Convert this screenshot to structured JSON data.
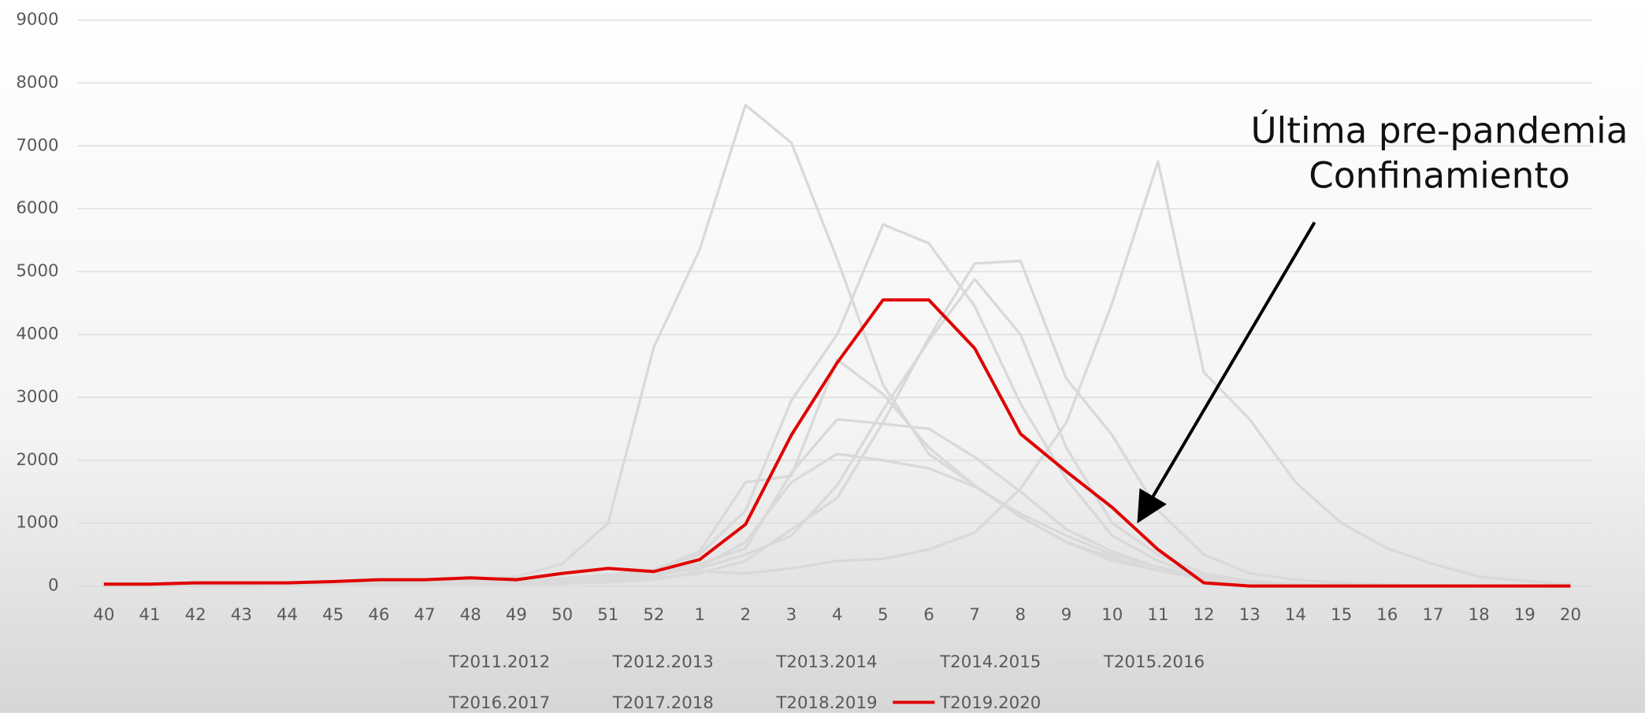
{
  "chart_data": {
    "type": "line",
    "categories": [
      "40",
      "41",
      "42",
      "43",
      "44",
      "45",
      "46",
      "47",
      "48",
      "49",
      "50",
      "51",
      "52",
      "1",
      "2",
      "3",
      "4",
      "5",
      "6",
      "7",
      "8",
      "9",
      "10",
      "11",
      "12",
      "13",
      "14",
      "15",
      "16",
      "17",
      "18",
      "19",
      "20"
    ],
    "series": [
      {
        "name": "T2011.2012",
        "color": "#d9d9d9",
        "values": [
          10,
          10,
          10,
          20,
          20,
          30,
          30,
          40,
          50,
          60,
          80,
          120,
          200,
          350,
          600,
          1800,
          2650,
          2580,
          2500,
          2050,
          1500,
          900,
          550,
          300,
          150,
          60,
          30,
          10,
          0,
          0,
          0,
          0,
          0
        ]
      },
      {
        "name": "T2012.2013",
        "color": "#d9d9d9",
        "values": [
          10,
          10,
          10,
          10,
          20,
          20,
          30,
          30,
          40,
          50,
          60,
          80,
          120,
          200,
          400,
          900,
          1400,
          2600,
          3950,
          5130,
          5170,
          3300,
          2400,
          1200,
          500,
          200,
          100,
          50,
          20,
          10,
          0,
          0,
          0
        ]
      },
      {
        "name": "T2013.2014",
        "color": "#d9d9d9",
        "values": [
          10,
          10,
          10,
          20,
          20,
          30,
          30,
          40,
          50,
          70,
          90,
          130,
          180,
          280,
          500,
          800,
          1600,
          2800,
          3900,
          4880,
          4000,
          2200,
          1000,
          500,
          200,
          80,
          30,
          10,
          0,
          0,
          0,
          0,
          0
        ]
      },
      {
        "name": "T2014.2015",
        "color": "#d9d9d9",
        "values": [
          10,
          10,
          20,
          20,
          30,
          30,
          40,
          50,
          70,
          90,
          120,
          180,
          260,
          500,
          1200,
          2950,
          4000,
          5750,
          5450,
          4450,
          2900,
          1700,
          800,
          400,
          150,
          60,
          20,
          10,
          0,
          0,
          0,
          0,
          0
        ]
      },
      {
        "name": "T2015.2016",
        "color": "#d9d9d9",
        "values": [
          0,
          0,
          0,
          0,
          10,
          10,
          10,
          20,
          20,
          30,
          40,
          60,
          100,
          230,
          200,
          280,
          400,
          430,
          580,
          850,
          1550,
          2600,
          4500,
          6750,
          3400,
          2650,
          1650,
          1000,
          600,
          350,
          150,
          80,
          30
        ]
      },
      {
        "name": "T2016.2017",
        "color": "#d9d9d9",
        "values": [
          20,
          20,
          30,
          30,
          40,
          50,
          60,
          80,
          100,
          150,
          350,
          1000,
          3800,
          5350,
          7650,
          7050,
          5200,
          3200,
          2100,
          1600,
          1100,
          700,
          400,
          250,
          100,
          50,
          20,
          10,
          0,
          0,
          0,
          0,
          0
        ]
      },
      {
        "name": "T2017.2018",
        "color": "#d9d9d9",
        "values": [
          10,
          10,
          10,
          20,
          20,
          30,
          40,
          50,
          60,
          80,
          100,
          150,
          250,
          550,
          1650,
          1750,
          3600,
          3050,
          2200,
          1600,
          1100,
          700,
          450,
          250,
          100,
          40,
          20,
          10,
          0,
          0,
          0,
          0,
          0
        ]
      },
      {
        "name": "T2018.2019",
        "color": "#d9d9d9",
        "values": [
          10,
          10,
          10,
          20,
          20,
          30,
          30,
          40,
          50,
          60,
          80,
          110,
          160,
          300,
          700,
          1650,
          2100,
          2000,
          1870,
          1580,
          1150,
          800,
          500,
          300,
          120,
          50,
          20,
          10,
          0,
          0,
          0,
          0,
          0
        ]
      },
      {
        "name": "T2019.2020",
        "color": "#e00000",
        "values": [
          30,
          30,
          50,
          50,
          50,
          70,
          100,
          100,
          130,
          100,
          200,
          280,
          230,
          420,
          980,
          2400,
          3550,
          4550,
          4550,
          3780,
          2420,
          1820,
          1250,
          580,
          50,
          0,
          0,
          0,
          0,
          0,
          0,
          0,
          0
        ]
      }
    ],
    "ylim": [
      0,
      9000
    ],
    "yticks": [
      0,
      1000,
      2000,
      3000,
      4000,
      5000,
      6000,
      7000,
      8000,
      9000
    ],
    "grid": true,
    "legend": "bottom",
    "annotations": [
      "Última pre-pandemia",
      "Confinamiento"
    ]
  }
}
